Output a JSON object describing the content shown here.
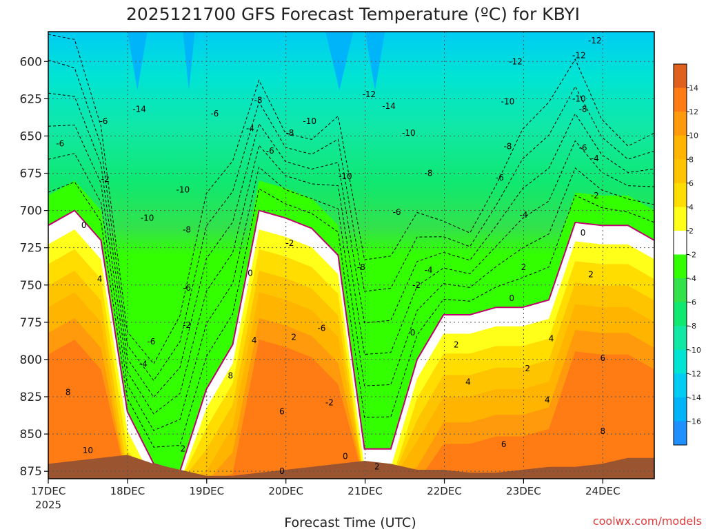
{
  "chart_data": {
    "type": "heatmap",
    "title": "2025121700 GFS Forecast Temperature (ºC) for KBYI",
    "xlabel": "Forecast Time (UTC)",
    "ylabel": "",
    "credit": "coolwx.com/models",
    "x_ticks": [
      "17DEC",
      "18DEC",
      "19DEC",
      "20DEC",
      "21DEC",
      "22DEC",
      "23DEC",
      "24DEC"
    ],
    "x_year": "2025",
    "xlim_days": [
      0,
      7.65
    ],
    "y_ticks": [
      600,
      625,
      650,
      675,
      700,
      725,
      750,
      775,
      800,
      825,
      850,
      875
    ],
    "ylim": [
      580,
      880
    ],
    "y_scale": "pressure (hPa), increasing downward",
    "colorbar": {
      "ticks": [
        14,
        12,
        10,
        8,
        6,
        4,
        2,
        -2,
        -4,
        -6,
        -8,
        -10,
        -12,
        -14,
        -16
      ],
      "colors": [
        "#e0601e",
        "#ff7c14",
        "#ff9a0c",
        "#ffb400",
        "#ffc400",
        "#ffdd00",
        "#ffff1a",
        "#ffffff",
        "#33ff00",
        "#33e24a",
        "#10e870",
        "#10e8a4",
        "#00e4d4",
        "#00ccf4",
        "#00b4fa",
        "#1e90ff"
      ]
    },
    "surface_pressure_hpa": [
      870,
      868,
      866,
      864,
      870,
      874,
      878,
      878,
      876,
      874,
      872,
      870,
      868,
      870,
      874,
      874,
      876,
      876,
      874,
      872,
      872,
      870,
      866,
      866
    ],
    "freezing_level_hpa": [
      710,
      700,
      720,
      835,
      870,
      875,
      820,
      790,
      700,
      705,
      712,
      730,
      860,
      860,
      800,
      770,
      770,
      765,
      765,
      760,
      708,
      710,
      710,
      720
    ],
    "contour_labels": [
      {
        "day": 0.15,
        "p": 655,
        "text": "-6"
      },
      {
        "day": 0.7,
        "p": 640,
        "text": "-6"
      },
      {
        "day": 0.72,
        "p": 679,
        "text": "-2"
      },
      {
        "day": 1.15,
        "p": 632,
        "text": "-14"
      },
      {
        "day": 0.45,
        "p": 710,
        "text": "0"
      },
      {
        "day": 0.65,
        "p": 746,
        "text": "4"
      },
      {
        "day": 0.25,
        "p": 822,
        "text": "8"
      },
      {
        "day": 0.5,
        "p": 861,
        "text": "10"
      },
      {
        "day": 1.25,
        "p": 705,
        "text": "-10"
      },
      {
        "day": 1.7,
        "p": 686,
        "text": "-10"
      },
      {
        "day": 1.3,
        "p": 788,
        "text": "-6"
      },
      {
        "day": 1.2,
        "p": 803,
        "text": "-4"
      },
      {
        "day": 1.75,
        "p": 713,
        "text": "-8"
      },
      {
        "day": 1.75,
        "p": 752,
        "text": "-6"
      },
      {
        "day": 1.75,
        "p": 777,
        "text": "-2"
      },
      {
        "day": 1.7,
        "p": 860,
        "text": "2"
      },
      {
        "day": 2.1,
        "p": 635,
        "text": "-6"
      },
      {
        "day": 2.55,
        "p": 645,
        "text": "-4"
      },
      {
        "day": 2.65,
        "p": 626,
        "text": "-8"
      },
      {
        "day": 2.8,
        "p": 660,
        "text": "-6"
      },
      {
        "day": 2.55,
        "p": 742,
        "text": "0"
      },
      {
        "day": 2.6,
        "p": 787,
        "text": "4"
      },
      {
        "day": 2.3,
        "p": 811,
        "text": "8"
      },
      {
        "day": 3.05,
        "p": 722,
        "text": "-2"
      },
      {
        "day": 3.1,
        "p": 785,
        "text": "2"
      },
      {
        "day": 2.95,
        "p": 835,
        "text": "6"
      },
      {
        "day": 2.95,
        "p": 875,
        "text": "0"
      },
      {
        "day": 3.05,
        "p": 648,
        "text": "-8"
      },
      {
        "day": 3.3,
        "p": 640,
        "text": "-10"
      },
      {
        "day": 3.75,
        "p": 677,
        "text": "-10"
      },
      {
        "day": 3.95,
        "p": 738,
        "text": "-8"
      },
      {
        "day": 3.45,
        "p": 779,
        "text": "-6"
      },
      {
        "day": 3.55,
        "p": 829,
        "text": "-2"
      },
      {
        "day": 3.75,
        "p": 865,
        "text": "0"
      },
      {
        "day": 4.05,
        "p": 622,
        "text": "-12"
      },
      {
        "day": 4.3,
        "p": 630,
        "text": "-14"
      },
      {
        "day": 4.55,
        "p": 648,
        "text": "-10"
      },
      {
        "day": 4.8,
        "p": 675,
        "text": "-8"
      },
      {
        "day": 4.4,
        "p": 701,
        "text": "-6"
      },
      {
        "day": 4.65,
        "p": 750,
        "text": "-2"
      },
      {
        "day": 4.6,
        "p": 782,
        "text": "0"
      },
      {
        "day": 4.8,
        "p": 740,
        "text": "-4"
      },
      {
        "day": 4.15,
        "p": 872,
        "text": "2"
      },
      {
        "day": 5.15,
        "p": 790,
        "text": "2"
      },
      {
        "day": 5.3,
        "p": 815,
        "text": "4"
      },
      {
        "day": 5.75,
        "p": 857,
        "text": "6"
      },
      {
        "day": 5.8,
        "p": 657,
        "text": "-8"
      },
      {
        "day": 5.7,
        "p": 678,
        "text": "-6"
      },
      {
        "day": 6.0,
        "p": 703,
        "text": "-4"
      },
      {
        "day": 6.0,
        "p": 738,
        "text": "2"
      },
      {
        "day": 5.85,
        "p": 759,
        "text": "0"
      },
      {
        "day": 6.35,
        "p": 786,
        "text": "4"
      },
      {
        "day": 6.05,
        "p": 806,
        "text": "2"
      },
      {
        "day": 6.3,
        "p": 827,
        "text": "4"
      },
      {
        "day": 5.9,
        "p": 600,
        "text": "-12"
      },
      {
        "day": 5.8,
        "p": 627,
        "text": "-10"
      },
      {
        "day": 6.7,
        "p": 596,
        "text": "-12"
      },
      {
        "day": 6.7,
        "p": 625,
        "text": "-10"
      },
      {
        "day": 6.75,
        "p": 632,
        "text": "-8"
      },
      {
        "day": 6.75,
        "p": 658,
        "text": "-6"
      },
      {
        "day": 6.9,
        "p": 665,
        "text": "-4"
      },
      {
        "day": 6.9,
        "p": 690,
        "text": "-2"
      },
      {
        "day": 6.75,
        "p": 715,
        "text": "0"
      },
      {
        "day": 6.85,
        "p": 743,
        "text": "2"
      },
      {
        "day": 7.0,
        "p": 799,
        "text": "6"
      },
      {
        "day": 7.0,
        "p": 848,
        "text": "8"
      },
      {
        "day": 6.9,
        "p": 586,
        "text": "-12"
      }
    ]
  }
}
